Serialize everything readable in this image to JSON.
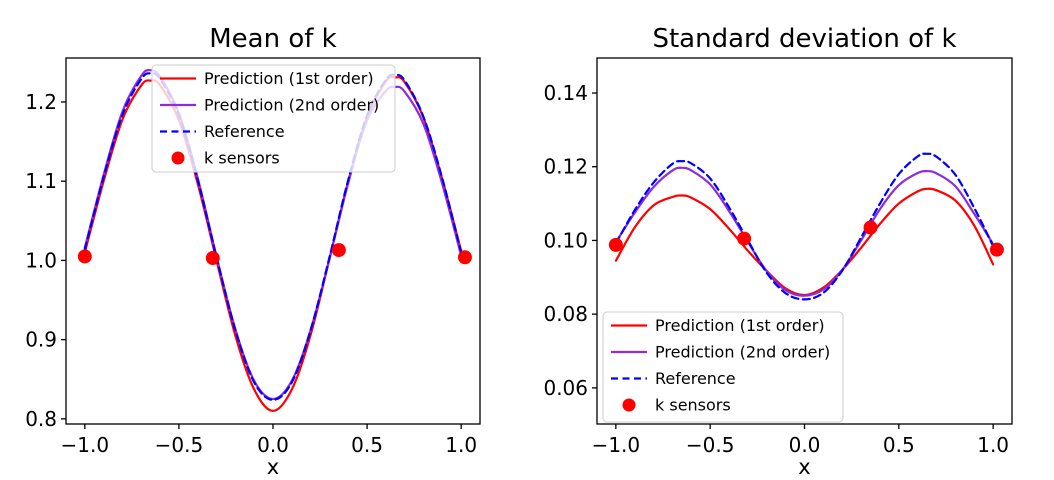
{
  "figure": {
    "background": "#ffffff"
  },
  "colors": {
    "prediction_1st": "#ff0000",
    "prediction_2nd": "#8e2bdb",
    "reference": "#0000ff",
    "sensors": "#ff0000",
    "legend_border": "#cccccc",
    "axis": "#000000"
  },
  "chart_data": [
    {
      "type": "line",
      "title": "Mean of k",
      "xlabel": "x",
      "ylabel": "",
      "xlim": [
        -1.1,
        1.1
      ],
      "ylim": [
        0.7935,
        1.2555
      ],
      "grid": false,
      "legend_location": "upper-left-inset",
      "xticks": [
        -1.0,
        -0.5,
        0.0,
        0.5,
        1.0
      ],
      "xtick_labels": [
        "−1.0",
        "−0.5",
        "0.0",
        "0.5",
        "1.0"
      ],
      "yticks": [
        0.8,
        0.9,
        1.0,
        1.1,
        1.2
      ],
      "ytick_labels": [
        "0.8",
        "0.9",
        "1.0",
        "1.1",
        "1.2"
      ],
      "series": [
        {
          "name": "Prediction (1st order)",
          "style": "solid",
          "color": "#ff0000",
          "x": [
            -1,
            -0.9,
            -0.8,
            -0.7,
            -0.65,
            -0.6,
            -0.5,
            -0.4,
            -0.3,
            -0.2,
            -0.1,
            0,
            0.1,
            0.2,
            0.3,
            0.4,
            0.5,
            0.6,
            0.65,
            0.7,
            0.8,
            0.9,
            1
          ],
          "y": [
            1.01,
            1.1,
            1.178,
            1.221,
            1.227,
            1.221,
            1.177,
            1.097,
            1.0,
            0.905,
            0.837,
            0.81,
            0.837,
            0.906,
            1.002,
            1.1,
            1.181,
            1.226,
            1.231,
            1.225,
            1.18,
            1.102,
            1.012
          ]
        },
        {
          "name": "Prediction (2nd order)",
          "style": "solid",
          "color": "#8e2bdb",
          "x": [
            -1,
            -0.9,
            -0.8,
            -0.7,
            -0.65,
            -0.6,
            -0.5,
            -0.4,
            -0.3,
            -0.2,
            -0.1,
            0,
            0.1,
            0.2,
            0.3,
            0.4,
            0.5,
            0.6,
            0.65,
            0.7,
            0.8,
            0.9,
            1
          ],
          "y": [
            1.016,
            1.108,
            1.188,
            1.233,
            1.24,
            1.232,
            1.186,
            1.104,
            1.005,
            0.913,
            0.848,
            0.825,
            0.848,
            0.912,
            1.002,
            1.098,
            1.177,
            1.214,
            1.219,
            1.213,
            1.172,
            1.096,
            1.006
          ]
        },
        {
          "name": "Reference",
          "style": "dashed",
          "color": "#0000ff",
          "x": [
            -1,
            -0.9,
            -0.8,
            -0.7,
            -0.65,
            -0.6,
            -0.5,
            -0.4,
            -0.3,
            -0.2,
            -0.1,
            0,
            0.1,
            0.2,
            0.3,
            0.4,
            0.5,
            0.6,
            0.65,
            0.7,
            0.8,
            0.9,
            1
          ],
          "y": [
            1.014,
            1.105,
            1.184,
            1.229,
            1.236,
            1.229,
            1.183,
            1.102,
            1.004,
            0.912,
            0.846,
            0.824,
            0.846,
            0.912,
            1.004,
            1.102,
            1.183,
            1.228,
            1.234,
            1.227,
            1.181,
            1.103,
            1.01
          ]
        },
        {
          "name": "k sensors",
          "style": "scatter",
          "color": "#ff0000",
          "x": [
            -1.0,
            -0.32,
            0.35,
            1.02
          ],
          "y": [
            1.005,
            1.003,
            1.013,
            1.004
          ]
        }
      ]
    },
    {
      "type": "line",
      "title": "Standard deviation of k",
      "xlabel": "x",
      "ylabel": "",
      "xlim": [
        -1.1,
        1.1
      ],
      "ylim": [
        0.0502,
        0.1495
      ],
      "grid": false,
      "legend_location": "lower-left-inset",
      "xticks": [
        -1.0,
        -0.5,
        0.0,
        0.5,
        1.0
      ],
      "xtick_labels": [
        "−1.0",
        "−0.5",
        "0.0",
        "0.5",
        "1.0"
      ],
      "yticks": [
        0.06,
        0.08,
        0.1,
        0.12,
        0.14
      ],
      "ytick_labels": [
        "0.06",
        "0.08",
        "0.10",
        "0.12",
        "0.14"
      ],
      "series": [
        {
          "name": "Prediction (1st order)",
          "style": "solid",
          "color": "#ff0000",
          "x": [
            -1,
            -0.9,
            -0.8,
            -0.7,
            -0.65,
            -0.6,
            -0.5,
            -0.4,
            -0.3,
            -0.2,
            -0.1,
            0,
            0.1,
            0.2,
            0.3,
            0.4,
            0.5,
            0.6,
            0.65,
            0.7,
            0.8,
            0.9,
            1
          ],
          "y": [
            0.0945,
            0.1035,
            0.1095,
            0.1118,
            0.1122,
            0.1116,
            0.1085,
            0.1032,
            0.0972,
            0.0917,
            0.087,
            0.0852,
            0.0872,
            0.092,
            0.098,
            0.1045,
            0.11,
            0.1133,
            0.114,
            0.1136,
            0.1108,
            0.104,
            0.0935
          ]
        },
        {
          "name": "Prediction (2nd order)",
          "style": "solid",
          "color": "#8e2bdb",
          "x": [
            -1,
            -0.9,
            -0.8,
            -0.7,
            -0.65,
            -0.6,
            -0.5,
            -0.4,
            -0.3,
            -0.2,
            -0.1,
            0,
            0.1,
            0.2,
            0.3,
            0.4,
            0.5,
            0.6,
            0.65,
            0.7,
            0.8,
            0.9,
            1
          ],
          "y": [
            0.0995,
            0.1075,
            0.1145,
            0.119,
            0.1197,
            0.119,
            0.1152,
            0.108,
            0.0996,
            0.0916,
            0.0865,
            0.085,
            0.0867,
            0.092,
            0.1,
            0.1085,
            0.115,
            0.1183,
            0.1188,
            0.1182,
            0.1147,
            0.1072,
            0.099
          ]
        },
        {
          "name": "Reference",
          "style": "dashed",
          "color": "#0000ff",
          "x": [
            -1,
            -0.9,
            -0.8,
            -0.7,
            -0.65,
            -0.6,
            -0.5,
            -0.4,
            -0.3,
            -0.2,
            -0.1,
            0,
            0.1,
            0.2,
            0.3,
            0.4,
            0.5,
            0.6,
            0.65,
            0.7,
            0.8,
            0.9,
            1
          ],
          "y": [
            0.0992,
            0.1082,
            0.1157,
            0.1208,
            0.1215,
            0.1209,
            0.1168,
            0.109,
            0.1,
            0.0912,
            0.0857,
            0.084,
            0.0858,
            0.0918,
            0.1008,
            0.11,
            0.118,
            0.1228,
            0.1235,
            0.1227,
            0.1178,
            0.1088,
            0.0985
          ]
        },
        {
          "name": "k sensors",
          "style": "scatter",
          "color": "#ff0000",
          "x": [
            -1.0,
            -0.32,
            0.35,
            1.02
          ],
          "y": [
            0.0988,
            0.1005,
            0.1035,
            0.0975
          ]
        }
      ]
    }
  ]
}
